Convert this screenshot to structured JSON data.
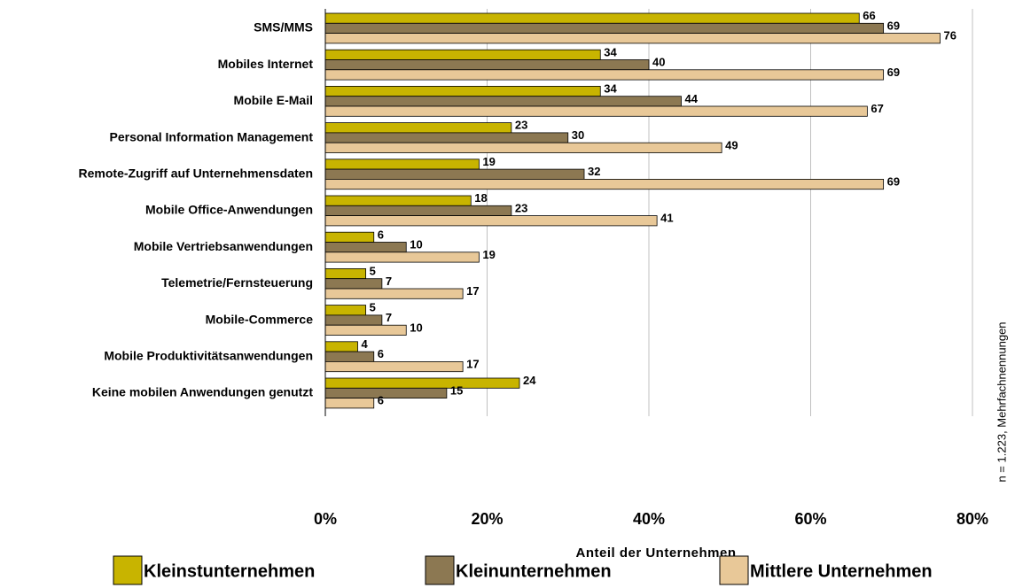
{
  "chart_data": {
    "type": "bar",
    "orientation": "horizontal",
    "categories": [
      "SMS/MMS",
      "Mobiles Internet",
      "Mobile E-Mail",
      "Personal Information Management",
      "Remote-Zugriff auf Unternehmensdaten",
      "Mobile Office-Anwendungen",
      "Mobile Vertriebsanwendungen",
      "Telemetrie/Fernsteuerung",
      "Mobile-Commerce",
      "Mobile Produktivitätsanwendungen",
      "Keine mobilen Anwendungen genutzt"
    ],
    "series": [
      {
        "name": "Kleinstunternehmen",
        "color": "#c8b400",
        "values": [
          66,
          34,
          34,
          23,
          19,
          18,
          6,
          5,
          5,
          4,
          24
        ]
      },
      {
        "name": "Kleinunternehmen",
        "color": "#8c7852",
        "values": [
          69,
          40,
          44,
          30,
          32,
          23,
          10,
          7,
          7,
          6,
          15
        ]
      },
      {
        "name": "Mittlere Unternehmen",
        "color": "#e8c898",
        "values": [
          76,
          69,
          67,
          49,
          69,
          41,
          19,
          17,
          10,
          17,
          6
        ]
      }
    ],
    "xlim": [
      0,
      80
    ],
    "xticks": [
      {
        "value": 0,
        "label": "0%"
      },
      {
        "value": 20,
        "label": "20%"
      },
      {
        "value": 40,
        "label": "40%"
      },
      {
        "value": 60,
        "label": "60%"
      },
      {
        "value": 80,
        "label": "80%"
      }
    ],
    "xlabel": "Anteil der Unternehmen",
    "note": "n = 1.223, Mehrfachnennungen",
    "grid": true,
    "legend": "bottom"
  }
}
